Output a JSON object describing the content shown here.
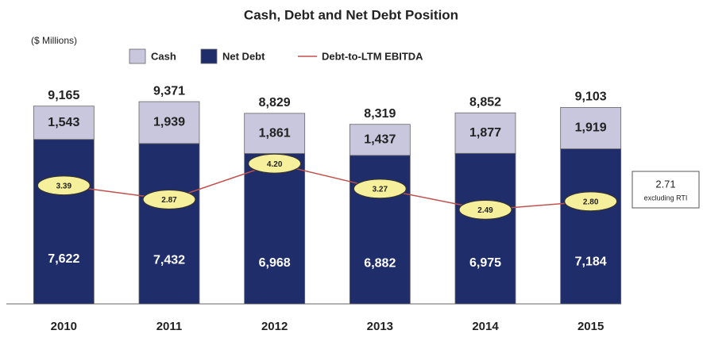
{
  "chart_data": {
    "type": "stacked_bar_line",
    "title": "Cash, Debt and Net Debt Position",
    "subtitle": "($ Millions)",
    "categories": [
      "2010",
      "2011",
      "2012",
      "2013",
      "2014",
      "2015"
    ],
    "series": [
      {
        "name": "Net Debt",
        "color": "#1f2d6a",
        "values": [
          7622,
          7432,
          6968,
          6882,
          6975,
          7184
        ],
        "value_labels": [
          "7,622",
          "7,432",
          "6,968",
          "6,882",
          "6,975",
          "7,184"
        ]
      },
      {
        "name": "Cash",
        "color": "#c9c7dd",
        "values": [
          1543,
          1939,
          1861,
          1437,
          1877,
          1919
        ],
        "value_labels": [
          "1,543",
          "1,939",
          "1,861",
          "1,437",
          "1,877",
          "1,919"
        ]
      },
      {
        "name": "Debt-to-LTM EBITDA",
        "color": "#c0504d",
        "axis": "y2",
        "values": [
          3.39,
          2.87,
          4.2,
          3.27,
          2.49,
          2.8
        ],
        "value_labels": [
          "3.39",
          "2.87",
          "4.20",
          "3.27",
          "2.49",
          "2.80"
        ]
      }
    ],
    "totals": [
      9165,
      9371,
      8829,
      8319,
      8852,
      9103
    ],
    "total_labels": [
      "9,165",
      "9,371",
      "8,829",
      "8,319",
      "8,852",
      "9,103"
    ],
    "annotation": {
      "value": "2.71",
      "text": "excluding RTI"
    },
    "ylim": [
      0,
      10000
    ],
    "y2lim": [
      -1,
      7
    ]
  }
}
